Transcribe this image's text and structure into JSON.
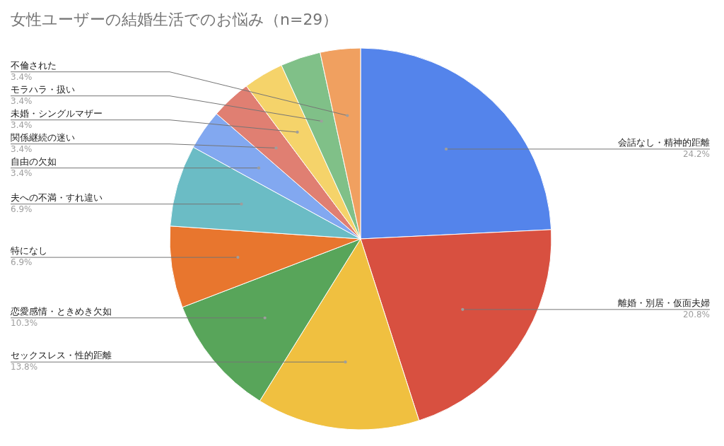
{
  "chart_data": {
    "type": "pie",
    "title": "女性ユーザーの結婚生活でのお悩み（n=29）",
    "categories": [
      "会話なし・精神的距離",
      "離婚・別居・仮面夫婦",
      "セックスレス・性的距離",
      "恋愛感情・ときめき欠如",
      "特になし",
      "夫への不満・すれ違い",
      "自由の欠如",
      "関係継続の迷い",
      "未婚・シングルマザー",
      "モラハラ・扱い",
      "不倫された"
    ],
    "values": [
      24.2,
      20.8,
      13.8,
      10.3,
      6.9,
      6.9,
      3.4,
      3.4,
      3.4,
      3.4,
      3.4
    ],
    "value_labels": [
      "24.2%",
      "20.8%",
      "13.8%",
      "10.3%",
      "6.9%",
      "6.9%",
      "3.4%",
      "3.4%",
      "3.4%",
      "3.4%",
      "3.4%"
    ],
    "colors": [
      "#5484eb",
      "#d85040",
      "#f0c040",
      "#58a55a",
      "#e8762e",
      "#6bbcc5",
      "#82a8f0",
      "#e07f72",
      "#f5d36a",
      "#80c088",
      "#f0a060"
    ],
    "legend": false
  }
}
